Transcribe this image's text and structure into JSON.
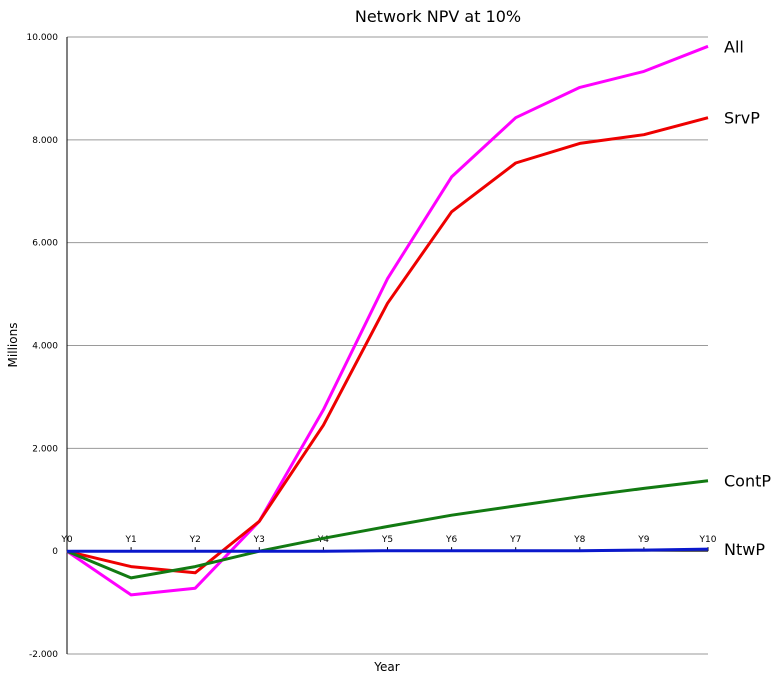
{
  "chart_data": {
    "type": "line",
    "title": "Network NPV at 10%",
    "xlabel": "Year",
    "ylabel": "Millions",
    "categories": [
      "Y0",
      "Y1",
      "Y2",
      "Y3",
      "Y4",
      "Y5",
      "Y6",
      "Y7",
      "Y8",
      "Y9",
      "Y10"
    ],
    "yticks": [
      "-2.000",
      "0",
      "2.000",
      "4.000",
      "6.000",
      "8.000",
      "10.000"
    ],
    "ytick_values": [
      -2,
      0,
      2,
      4,
      6,
      8,
      10
    ],
    "ylim": [
      -2,
      10
    ],
    "grid": true,
    "legend": "series labels at right end of lines",
    "series": [
      {
        "name": "All",
        "color": "#ff00ff",
        "values": [
          0,
          -0.85,
          -0.72,
          0.58,
          2.75,
          5.3,
          7.28,
          8.43,
          9.02,
          9.33,
          9.82
        ]
      },
      {
        "name": "SrvP",
        "color": "#ee0000",
        "values": [
          0,
          -0.3,
          -0.42,
          0.58,
          2.45,
          4.82,
          6.6,
          7.55,
          7.93,
          8.1,
          8.43
        ]
      },
      {
        "name": "ContP",
        "color": "#127a12",
        "values": [
          0,
          -0.52,
          -0.3,
          0.0,
          0.25,
          0.48,
          0.7,
          0.88,
          1.06,
          1.22,
          1.37
        ]
      },
      {
        "name": "NtwP",
        "color": "#0a18cc",
        "values": [
          0,
          0,
          0,
          0,
          0,
          0.01,
          0.01,
          0.01,
          0.01,
          0.02,
          0.04
        ]
      }
    ]
  }
}
